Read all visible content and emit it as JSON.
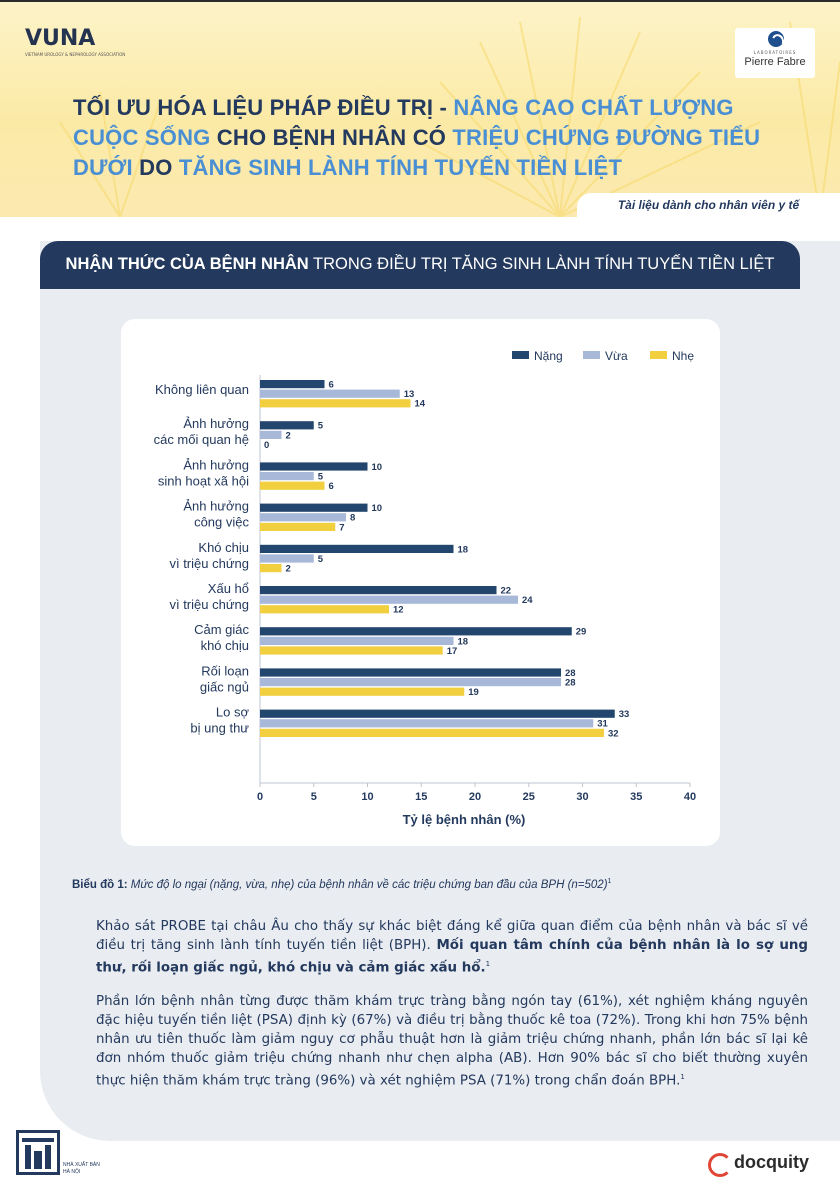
{
  "header": {
    "vuna_logo": "VUNA",
    "vuna_sub": "VIETNAM UROLOGY & NEPHROLOGY ASSOCIATION",
    "pf_lab": "LABORATOIRES",
    "pf_name": "Pierre Fabre",
    "title_parts": [
      "TỐI ƯU HÓA LIỆU PHÁP ĐIỀU TRỊ - ",
      "NÂNG CAO CHẤT LƯỢNG CUỘC SỐNG",
      " CHO BỆNH NHÂN CÓ ",
      "TRIỆU CHỨNG ĐƯỜNG TIỂU DƯỚI",
      " DO ",
      "TĂNG SINH LÀNH TÍNH TUYẾN TIỀN LIỆT"
    ],
    "hcp_note": "Tài liệu dành cho nhân viên y tế"
  },
  "section": {
    "heading_bold": "NHẬN THỨC CỦA BỆNH NHÂN",
    "heading_rest": " TRONG ĐIỀU TRỊ TĂNG SINH LÀNH TÍNH TUYẾN TIỀN LIỆT"
  },
  "chart_data": {
    "type": "bar",
    "orientation": "horizontal",
    "categories": [
      [
        "Không liên quan"
      ],
      [
        "Ảnh hưởng",
        "các mối quan hệ"
      ],
      [
        "Ảnh hưởng",
        "sinh hoạt xã hội"
      ],
      [
        "Ảnh hưởng",
        "công việc"
      ],
      [
        "Khó chịu",
        "vì triệu chứng"
      ],
      [
        "Xấu hổ",
        "vì triệu chứng"
      ],
      [
        "Cảm giác",
        "khó chịu"
      ],
      [
        "Rối loạn",
        "giấc ngủ"
      ],
      [
        "Lo sợ",
        "bị ung thư"
      ]
    ],
    "series": [
      {
        "name": "Nặng",
        "color": "#23466e",
        "values": [
          6,
          5,
          10,
          10,
          18,
          22,
          29,
          28,
          33
        ]
      },
      {
        "name": "Vừa",
        "color": "#a8b8d8",
        "values": [
          13,
          2,
          5,
          8,
          5,
          24,
          18,
          28,
          31
        ]
      },
      {
        "name": "Nhẹ",
        "color": "#f1cf3f",
        "values": [
          14,
          0,
          6,
          7,
          2,
          12,
          17,
          19,
          32
        ]
      }
    ],
    "xlabel": "Tỷ lệ bệnh nhân (%)",
    "xlim": [
      0,
      40
    ],
    "xticks": [
      0,
      5,
      10,
      15,
      20,
      25,
      30,
      35,
      40
    ],
    "legend": "top-right",
    "grid": false
  },
  "caption": {
    "label": "Biểu đồ 1:",
    "text": " Mức độ lo ngại (nặng, vừa, nhẹ) của bệnh nhân về các triệu chứng ban đầu của BPH (n=502)",
    "ref": "1"
  },
  "body": {
    "p1_text": "Khảo sát PROBE tại châu Âu cho thấy sự khác biệt đáng kể giữa quan điểm của bệnh nhân và bác sĩ về điều trị tăng sinh lành tính tuyến tiền liệt (BPH). ",
    "p1_bold": "Mối quan tâm chính của bệnh nhân là lo sợ ung thư, rối loạn giấc ngủ, khó chịu và cảm giác xấu hổ.",
    "p1_ref": "1",
    "p2_text": "Phần lớn bệnh nhân từng được thăm khám trực tràng bằng ngón tay (61%), xét nghiệm kháng nguyên đặc hiệu tuyến tiền liệt (PSA) định kỳ (67%) và điều trị bằng thuốc kê toa (72%). Trong khi hơn 75% bệnh nhân ưu tiên thuốc làm giảm nguy cơ phẫu thuật hơn là giảm triệu chứng nhanh, phần lớn bác sĩ lại kê đơn nhóm thuốc giảm triệu chứng nhanh như chẹn alpha (AB). Hơn 90% bác sĩ cho biết thường xuyên thực hiện thăm khám trực tràng (96%) và xét nghiệm PSA (71%) trong chẩn đoán BPH.",
    "p2_ref": "1"
  },
  "footer": {
    "publisher_line1": "NHÀ XUẤT BẢN",
    "publisher_line2": "HÀ NỘI",
    "docquity": "docquity"
  }
}
